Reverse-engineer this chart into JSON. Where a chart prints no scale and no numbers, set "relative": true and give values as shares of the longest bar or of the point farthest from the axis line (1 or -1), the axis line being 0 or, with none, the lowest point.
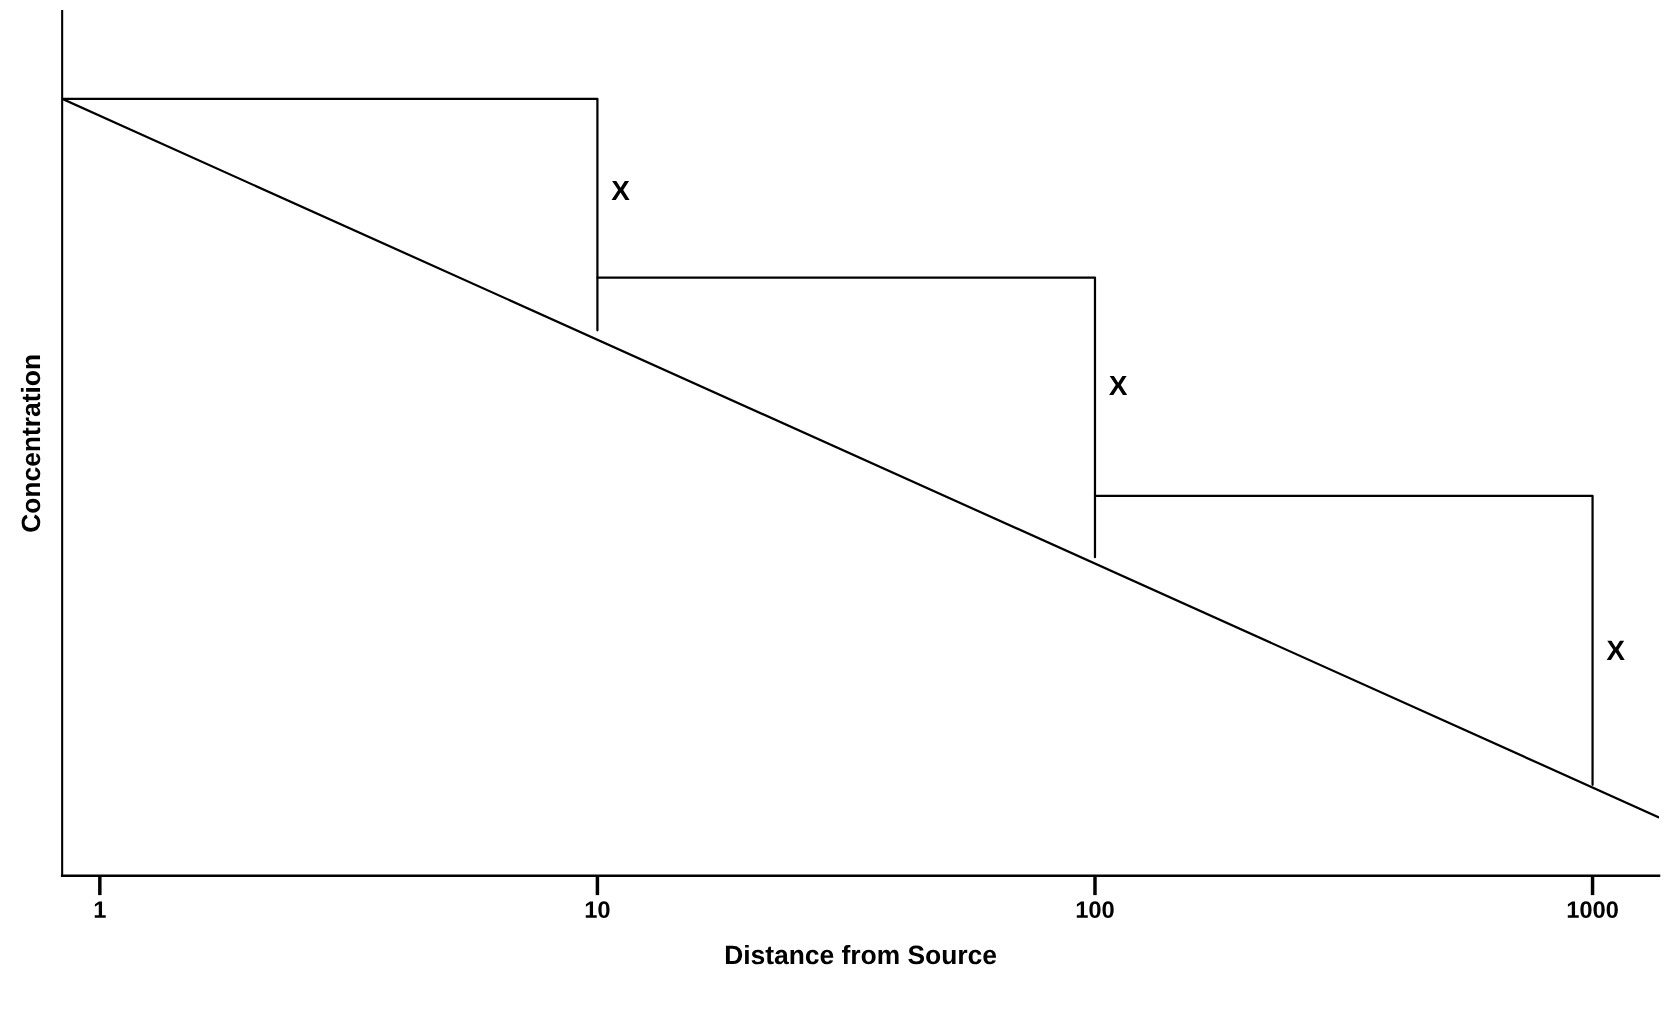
{
  "chart_data": {
    "type": "line",
    "xlabel": "Distance from Source",
    "ylabel": "Concentration",
    "relative": true,
    "log": "x",
    "xlim": [
      0.84,
      1360
    ],
    "xticks": [
      1,
      10,
      100,
      1000
    ],
    "tick_labels": "x",
    "grid": false,
    "legend": false,
    "marker": "none",
    "line_style": "solid",
    "series": [
      {
        "color": "#000000",
        "x": [
          0.84,
          1360
        ],
        "values": [
          1.0,
          0.075
        ]
      },
      {
        "color": "#000000",
        "x": [
          0.84,
          10,
          10
        ],
        "values": [
          1.0,
          1.0,
          0.702
        ]
      },
      {
        "color": "#000000",
        "x": [
          10,
          100,
          100
        ],
        "values": [
          0.77,
          0.77,
          0.41
        ]
      },
      {
        "color": "#000000",
        "x": [
          100,
          1000,
          1000
        ],
        "values": [
          0.489,
          0.489,
          0.117
        ]
      }
    ],
    "annotations": [
      {
        "text": "X",
        "x": 10,
        "y": 0.879
      },
      {
        "text": "X",
        "x": 100,
        "y": 0.628
      },
      {
        "text": "X",
        "x": 1000,
        "y": 0.287
      }
    ]
  }
}
